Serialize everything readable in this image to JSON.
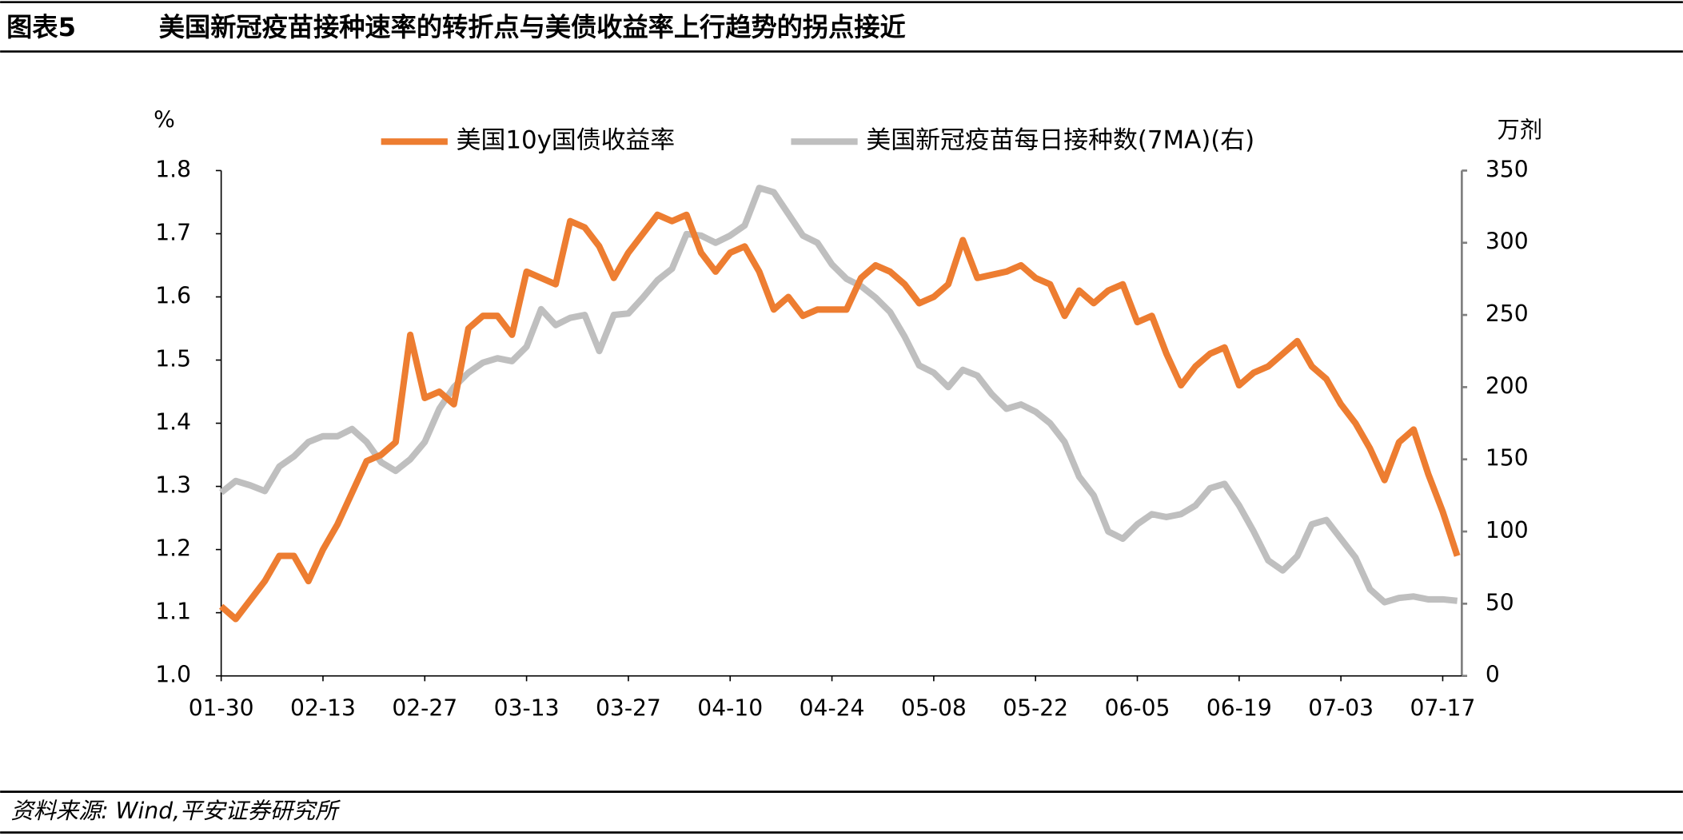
{
  "header": {
    "figure": "图表5",
    "title": "美国新冠疫苗接种速率的转折点与美债收益率上行趋势的拐点接近"
  },
  "source": "资料来源: Wind,平安证券研究所",
  "chart_data": {
    "type": "line",
    "y_label": "%",
    "y2_label": "万剂",
    "categories": [
      "01-30",
      null,
      null,
      null,
      null,
      null,
      null,
      "02-13",
      null,
      null,
      null,
      null,
      null,
      null,
      "02-27",
      null,
      null,
      null,
      null,
      null,
      null,
      "03-13",
      null,
      null,
      null,
      null,
      null,
      null,
      "03-27",
      null,
      null,
      null,
      null,
      null,
      null,
      "04-10",
      null,
      null,
      null,
      null,
      null,
      null,
      "04-24",
      null,
      null,
      null,
      null,
      null,
      null,
      "05-08",
      null,
      null,
      null,
      null,
      null,
      null,
      "05-22",
      null,
      null,
      null,
      null,
      null,
      null,
      "06-05",
      null,
      null,
      null,
      null,
      null,
      null,
      "06-19",
      null,
      null,
      null,
      null,
      null,
      null,
      "07-03",
      null,
      null,
      null,
      null,
      null,
      null,
      "07-17",
      null
    ],
    "series": [
      {
        "name": "美国10y国债收益率",
        "color": "#ED7D31",
        "axis": "y",
        "values": [
          1.11,
          1.09,
          1.12,
          1.15,
          1.19,
          1.19,
          1.15,
          1.2,
          1.24,
          1.29,
          1.34,
          1.35,
          1.37,
          1.54,
          1.44,
          1.45,
          1.43,
          1.55,
          1.57,
          1.57,
          1.54,
          1.64,
          1.63,
          1.62,
          1.72,
          1.71,
          1.68,
          1.63,
          1.67,
          1.7,
          1.73,
          1.72,
          1.73,
          1.67,
          1.64,
          1.67,
          1.68,
          1.64,
          1.58,
          1.6,
          1.57,
          1.58,
          1.58,
          1.58,
          1.63,
          1.65,
          1.64,
          1.62,
          1.59,
          1.6,
          1.62,
          1.69,
          1.63,
          1.635,
          1.64,
          1.65,
          1.63,
          1.62,
          1.57,
          1.61,
          1.59,
          1.61,
          1.62,
          1.56,
          1.57,
          1.51,
          1.46,
          1.49,
          1.51,
          1.52,
          1.46,
          1.48,
          1.49,
          1.51,
          1.53,
          1.49,
          1.47,
          1.43,
          1.4,
          1.36,
          1.31,
          1.37,
          1.39,
          1.32,
          1.26,
          1.19
        ]
      },
      {
        "name": "美国新冠疫苗每日接种数(7MA)(右)",
        "color": "#BFBFBF",
        "axis": "y2",
        "values": [
          127,
          135,
          132,
          128,
          145,
          152,
          162,
          166,
          166,
          171,
          162,
          148,
          142,
          150,
          162,
          185,
          200,
          210,
          217,
          220,
          218,
          228,
          254,
          243,
          248,
          250,
          225,
          250,
          251,
          262,
          274,
          282,
          306,
          305,
          300,
          305,
          312,
          338,
          335,
          320,
          305,
          300,
          285,
          275,
          270,
          262,
          252,
          235,
          215,
          210,
          200,
          212,
          208,
          195,
          185,
          188,
          183,
          175,
          162,
          138,
          125,
          100,
          95,
          105,
          112,
          110,
          112,
          118,
          130,
          133,
          118,
          100,
          80,
          73,
          83,
          105,
          108,
          95,
          82,
          60,
          51,
          54,
          55,
          53,
          53,
          52
        ]
      }
    ],
    "ylim": [
      1.0,
      1.8
    ],
    "yticks": [
      {
        "value": 1.0,
        "label": "1.0"
      },
      1.1,
      1.2,
      1.3,
      1.4,
      1.5,
      1.6,
      1.7,
      1.8
    ],
    "y2lim": [
      0,
      350
    ],
    "y2ticks": [
      0,
      50,
      100,
      150,
      200,
      250,
      300,
      350
    ],
    "legend": "top"
  }
}
